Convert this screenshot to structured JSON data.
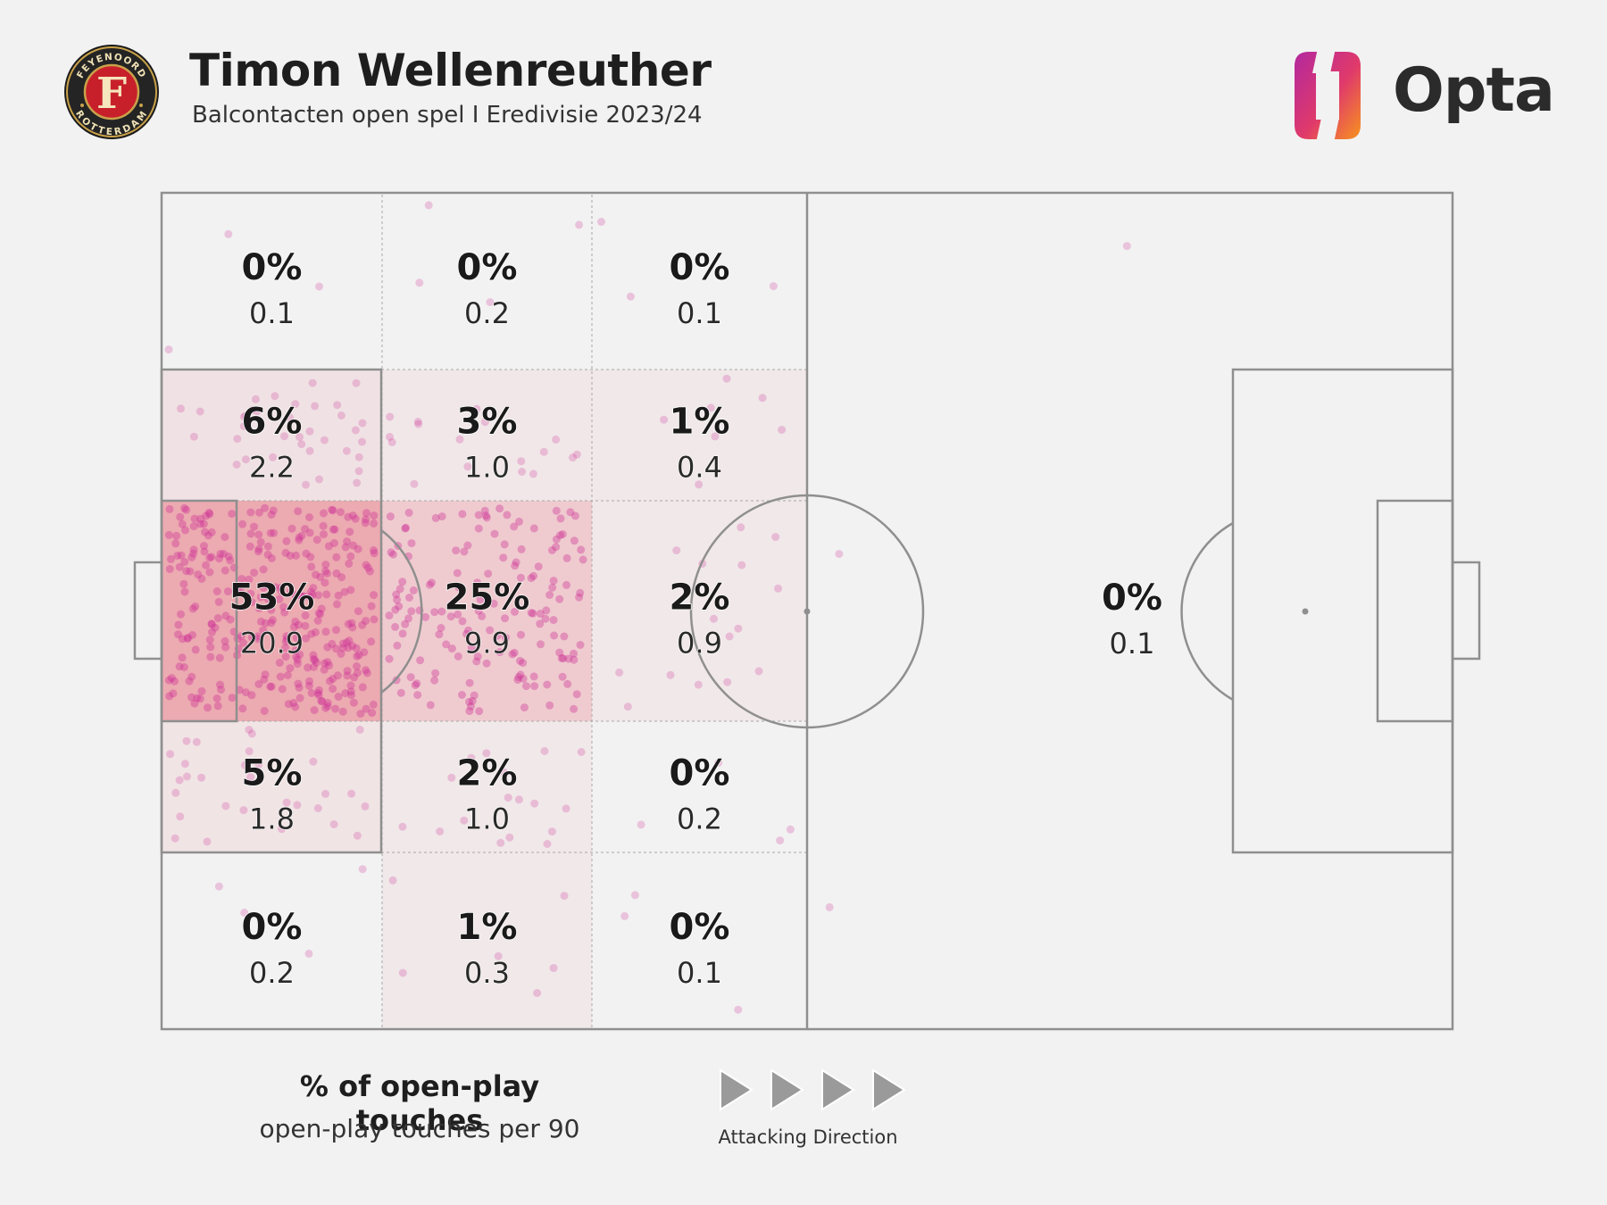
{
  "header": {
    "player_name": "Timon Wellenreuther",
    "subtitle": "Balcontacten open spel I Eredivisie 2023/24",
    "club_badge_text_top": "FEYENOORD",
    "club_badge_text_bottom": "ROTTERDAM",
    "club_badge_letter": "F",
    "brand_name": "Opta"
  },
  "legend": {
    "pct_label": "% of open-play touches",
    "per90_label": "open-play touches per 90",
    "direction_label": "Attacking Direction",
    "direction_icon": "play-arrow-icon"
  },
  "colors": {
    "background": "#f2f2f2",
    "pitch_line": "#8f8f8f",
    "zone_fill": "#e8707c",
    "dot": "#cc2f95",
    "brand_gradient": [
      "#b3289f",
      "#e03a6a",
      "#f7931e"
    ],
    "badge_red": "#c8202a",
    "badge_gold": "#c9a24a"
  },
  "chart_data": {
    "type": "heatmap",
    "title": "Timon Wellenreuther",
    "subtitle": "Balcontacten open spel I Eredivisie 2023/24",
    "value_labels": [
      "% of open-play touches",
      "open-play touches per 90"
    ],
    "attacking_direction": "left-to-right",
    "zones": [
      {
        "zone": "own-third-left-wing",
        "pct": "0%",
        "per90": "0.1",
        "share": 0.0
      },
      {
        "zone": "own-third-left-half",
        "pct": "6%",
        "per90": "2.2",
        "share": 0.06
      },
      {
        "zone": "own-third-central",
        "pct": "53%",
        "per90": "20.9",
        "share": 0.53
      },
      {
        "zone": "own-third-right-half",
        "pct": "5%",
        "per90": "1.8",
        "share": 0.05
      },
      {
        "zone": "own-third-right-wing",
        "pct": "0%",
        "per90": "0.2",
        "share": 0.0
      },
      {
        "zone": "middle-own-left-wing",
        "pct": "0%",
        "per90": "0.2",
        "share": 0.0
      },
      {
        "zone": "middle-own-left-half",
        "pct": "3%",
        "per90": "1.0",
        "share": 0.03
      },
      {
        "zone": "middle-own-central",
        "pct": "25%",
        "per90": "9.9",
        "share": 0.25
      },
      {
        "zone": "middle-own-right-half",
        "pct": "2%",
        "per90": "1.0",
        "share": 0.02
      },
      {
        "zone": "middle-own-right-wing",
        "pct": "1%",
        "per90": "0.3",
        "share": 0.01
      },
      {
        "zone": "halfway-left-wing",
        "pct": "0%",
        "per90": "0.1",
        "share": 0.0
      },
      {
        "zone": "halfway-left-half",
        "pct": "1%",
        "per90": "0.4",
        "share": 0.01
      },
      {
        "zone": "halfway-central",
        "pct": "2%",
        "per90": "0.9",
        "share": 0.02
      },
      {
        "zone": "halfway-right-half",
        "pct": "0%",
        "per90": "0.2",
        "share": 0.0
      },
      {
        "zone": "halfway-right-wing",
        "pct": "0%",
        "per90": "0.1",
        "share": 0.0
      },
      {
        "zone": "opposition-half",
        "pct": "0%",
        "per90": "0.1",
        "share": 0.0
      }
    ]
  }
}
